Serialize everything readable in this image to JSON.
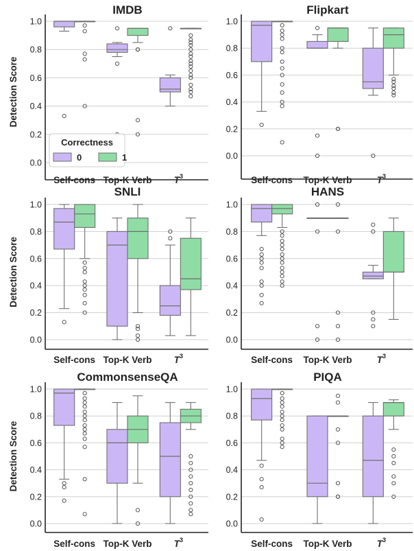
{
  "chart_data": [
    {
      "type": "box",
      "title": "IMDB",
      "ylabel": "Detection Score",
      "ylim": [
        0,
        1
      ],
      "categories": [
        "Self-cons",
        "Top-K Verb",
        "T3"
      ],
      "groups": [
        {
          "name": "0",
          "stats": [
            {
              "whislo": 0.93,
              "q1": 0.96,
              "med": 1.0,
              "q3": 1.0,
              "whishi": 1.0,
              "fliers": [
                0.33
              ]
            },
            {
              "whislo": 0.75,
              "q1": 0.78,
              "med": 0.8,
              "q3": 0.84,
              "whishi": 0.85,
              "fliers": [
                0.95,
                0.7,
                0.2
              ]
            },
            {
              "whislo": 0.4,
              "q1": 0.5,
              "med": 0.52,
              "q3": 0.6,
              "whishi": 0.62,
              "fliers": [
                0.95
              ]
            }
          ]
        },
        {
          "name": "1",
          "stats": [
            {
              "whislo": 1.0,
              "q1": 1.0,
              "med": 1.0,
              "q3": 1.0,
              "whishi": 1.0,
              "fliers": [
                0.97,
                0.93,
                0.77,
                0.73,
                0.4
              ]
            },
            {
              "whislo": 0.85,
              "q1": 0.9,
              "med": 0.95,
              "q3": 0.95,
              "whishi": 0.95,
              "fliers": [
                0.8,
                0.8,
                0.3,
                0.2
              ]
            },
            {
              "whislo": 0.95,
              "q1": 0.95,
              "med": 0.95,
              "q3": 0.95,
              "whishi": 0.95,
              "fliers": [
                0.9,
                0.87,
                0.85,
                0.83,
                0.8,
                0.77,
                0.75,
                0.72,
                0.7,
                0.68,
                0.65,
                0.62,
                0.6,
                0.55,
                0.52,
                0.5,
                0.47
              ]
            }
          ]
        }
      ]
    },
    {
      "type": "box",
      "title": "Flipkart",
      "ylabel": "",
      "ylim": [
        0,
        1
      ],
      "categories": [
        "Self-cons",
        "Top-K Verb",
        "T3"
      ],
      "groups": [
        {
          "name": "0",
          "stats": [
            {
              "whislo": 0.33,
              "q1": 0.7,
              "med": 0.97,
              "q3": 1.0,
              "whishi": 1.0,
              "fliers": [
                0.23
              ]
            },
            {
              "whislo": 0.8,
              "q1": 0.8,
              "med": 0.8,
              "q3": 0.85,
              "whishi": 0.9,
              "fliers": [
                0.95,
                0.15,
                0.0
              ]
            },
            {
              "whislo": 0.45,
              "q1": 0.5,
              "med": 0.55,
              "q3": 0.8,
              "whishi": 0.95,
              "fliers": [
                0.0
              ]
            }
          ]
        },
        {
          "name": "1",
          "stats": [
            {
              "whislo": 1.0,
              "q1": 1.0,
              "med": 1.0,
              "q3": 1.0,
              "whishi": 1.0,
              "fliers": [
                0.97,
                0.93,
                0.9,
                0.87,
                0.8,
                0.77,
                0.7,
                0.65,
                0.6,
                0.53,
                0.47,
                0.4,
                0.37,
                0.1
              ]
            },
            {
              "whislo": 0.8,
              "q1": 0.85,
              "med": 0.95,
              "q3": 0.95,
              "whishi": 0.95,
              "fliers": [
                0.2,
                0.2
              ]
            },
            {
              "whislo": 0.6,
              "q1": 0.8,
              "med": 0.9,
              "q3": 0.95,
              "whishi": 0.95,
              "fliers": [
                0.57,
                0.55,
                0.52,
                0.5,
                0.47,
                0.45
              ]
            }
          ]
        }
      ]
    },
    {
      "type": "box",
      "title": "SNLI",
      "ylabel": "Detection Score",
      "ylim": [
        0,
        1
      ],
      "categories": [
        "Self-cons",
        "Top-K Verb",
        "T3"
      ],
      "groups": [
        {
          "name": "0",
          "stats": [
            {
              "whislo": 0.23,
              "q1": 0.67,
              "med": 0.87,
              "q3": 0.97,
              "whishi": 1.0,
              "fliers": [
                0.13
              ]
            },
            {
              "whislo": 0.0,
              "q1": 0.1,
              "med": 0.7,
              "q3": 0.8,
              "whishi": 0.9,
              "fliers": []
            },
            {
              "whislo": 0.03,
              "q1": 0.18,
              "med": 0.25,
              "q3": 0.4,
              "whishi": 0.7,
              "fliers": [
                0.8,
                0.75
              ]
            }
          ]
        },
        {
          "name": "1",
          "stats": [
            {
              "whislo": 0.6,
              "q1": 0.83,
              "med": 0.93,
              "q3": 1.0,
              "whishi": 1.0,
              "fliers": [
                0.57,
                0.53,
                0.5,
                0.43,
                0.4,
                0.37,
                0.33,
                0.27,
                0.2
              ]
            },
            {
              "whislo": 0.2,
              "q1": 0.6,
              "med": 0.8,
              "q3": 0.9,
              "whishi": 1.0,
              "fliers": [
                0.1,
                0.08,
                0.03,
                0.0
              ]
            },
            {
              "whislo": 0.03,
              "q1": 0.37,
              "med": 0.45,
              "q3": 0.75,
              "whishi": 0.9,
              "fliers": []
            }
          ]
        }
      ]
    },
    {
      "type": "box",
      "title": "HANS",
      "ylabel": "",
      "ylim": [
        0,
        1
      ],
      "categories": [
        "Self-cons",
        "Top-K Verb",
        "T3"
      ],
      "groups": [
        {
          "name": "0",
          "stats": [
            {
              "whislo": 0.77,
              "q1": 0.87,
              "med": 0.97,
              "q3": 1.0,
              "whishi": 1.0,
              "fliers": [
                0.67,
                0.63,
                0.6,
                0.57,
                0.53,
                0.43,
                0.4,
                0.33,
                0.27
              ]
            },
            {
              "whislo": 0.9,
              "q1": 0.9,
              "med": 0.9,
              "q3": 0.9,
              "whishi": 0.9,
              "fliers": [
                1.0,
                0.8,
                0.1,
                0.0
              ]
            },
            {
              "whislo": 0.45,
              "q1": 0.45,
              "med": 0.47,
              "q3": 0.5,
              "whishi": 0.55,
              "fliers": [
                0.85,
                0.8,
                0.2,
                0.15,
                0.1
              ]
            }
          ]
        },
        {
          "name": "1",
          "stats": [
            {
              "whislo": 0.83,
              "q1": 0.93,
              "med": 0.97,
              "q3": 1.0,
              "whishi": 1.0,
              "fliers": [
                0.8,
                0.77,
                0.73,
                0.7,
                0.67,
                0.63,
                0.6,
                0.57,
                0.53,
                0.5,
                0.47,
                0.43,
                0.4
              ]
            },
            {
              "whislo": 0.9,
              "q1": 0.9,
              "med": 0.9,
              "q3": 0.9,
              "whishi": 0.9,
              "fliers": [
                1.0,
                0.8,
                0.2,
                0.1,
                0.0
              ]
            },
            {
              "whislo": 0.15,
              "q1": 0.5,
              "med": 0.5,
              "q3": 0.8,
              "whishi": 0.9,
              "fliers": []
            }
          ]
        }
      ]
    },
    {
      "type": "box",
      "title": "CommonsenseQA",
      "ylabel": "Detection Score",
      "ylim": [
        0,
        1
      ],
      "categories": [
        "Self-cons",
        "Top-K Verb",
        "T3"
      ],
      "groups": [
        {
          "name": "0",
          "stats": [
            {
              "whislo": 0.33,
              "q1": 0.73,
              "med": 0.97,
              "q3": 1.0,
              "whishi": 1.0,
              "fliers": [
                0.3,
                0.27,
                0.17
              ]
            },
            {
              "whislo": 0.0,
              "q1": 0.3,
              "med": 0.6,
              "q3": 0.7,
              "whishi": 0.9,
              "fliers": []
            },
            {
              "whislo": 0.0,
              "q1": 0.2,
              "med": 0.5,
              "q3": 0.75,
              "whishi": 0.9,
              "fliers": []
            }
          ]
        },
        {
          "name": "1",
          "stats": [
            {
              "whislo": 1.0,
              "q1": 1.0,
              "med": 1.0,
              "q3": 1.0,
              "whishi": 1.0,
              "fliers": [
                0.97,
                0.93,
                0.9,
                0.87,
                0.83,
                0.8,
                0.77,
                0.73,
                0.7,
                0.67,
                0.63,
                0.57,
                0.33,
                0.07
              ]
            },
            {
              "whislo": 0.3,
              "q1": 0.6,
              "med": 0.7,
              "q3": 0.8,
              "whishi": 0.95,
              "fliers": [
                0.1,
                0.0
              ]
            },
            {
              "whislo": 0.7,
              "q1": 0.75,
              "med": 0.8,
              "q3": 0.85,
              "whishi": 0.9,
              "fliers": [
                0.5,
                0.45,
                0.4,
                0.35,
                0.3,
                0.25,
                0.2,
                0.15,
                0.1,
                0.07
              ]
            }
          ]
        }
      ]
    },
    {
      "type": "box",
      "title": "PIQA",
      "ylabel": "",
      "ylim": [
        0,
        1
      ],
      "categories": [
        "Self-cons",
        "Top-K Verb",
        "T3"
      ],
      "groups": [
        {
          "name": "0",
          "stats": [
            {
              "whislo": 0.47,
              "q1": 0.77,
              "med": 0.93,
              "q3": 1.0,
              "whishi": 1.0,
              "fliers": [
                0.43,
                0.33,
                0.27,
                0.03
              ]
            },
            {
              "whislo": 0.0,
              "q1": 0.2,
              "med": 0.3,
              "q3": 0.8,
              "whishi": 0.8,
              "fliers": []
            },
            {
              "whislo": 0.0,
              "q1": 0.2,
              "med": 0.47,
              "q3": 0.8,
              "whishi": 0.9,
              "fliers": []
            }
          ]
        },
        {
          "name": "1",
          "stats": [
            {
              "whislo": 1.0,
              "q1": 1.0,
              "med": 1.0,
              "q3": 1.0,
              "whishi": 1.0,
              "fliers": [
                0.97,
                0.93,
                0.9,
                0.87,
                0.83,
                0.8,
                0.77,
                0.73,
                0.7,
                0.63,
                0.6,
                0.57
              ]
            },
            {
              "whislo": 0.8,
              "q1": 0.8,
              "med": 0.8,
              "q3": 0.8,
              "whishi": 0.8,
              "fliers": [
                0.95,
                0.9,
                0.7,
                0.6,
                0.3,
                0.2,
                0.2
              ]
            },
            {
              "whislo": 0.7,
              "q1": 0.8,
              "med": 0.9,
              "q3": 0.9,
              "whishi": 0.92,
              "fliers": [
                0.55,
                0.5,
                0.45,
                0.35,
                0.3,
                0.2
              ]
            }
          ]
        }
      ]
    }
  ],
  "yticks": [
    "0.0",
    "0.2",
    "0.4",
    "0.6",
    "0.8",
    "1.0"
  ],
  "xticks": [
    "Self-cons",
    "Top-K Verb",
    "T",
    "3"
  ],
  "legend": {
    "title": "Correctness",
    "placement": "lower-left",
    "panel": 0,
    "entries": [
      {
        "label": "0",
        "color": "#cbb7f5"
      },
      {
        "label": "1",
        "color": "#8fdda5"
      }
    ]
  },
  "colors": {
    "group0": "#cbb7f5",
    "group1": "#8fdda5",
    "box_edge": "#6e6e6e",
    "grid": "#cfcfcf",
    "axis": "#222222"
  }
}
